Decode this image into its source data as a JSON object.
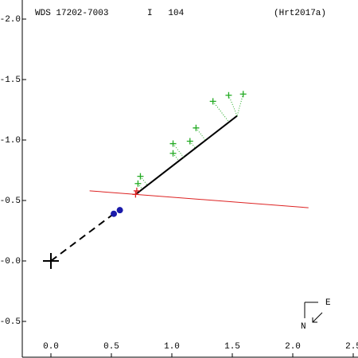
{
  "chart_data": {
    "type": "scatter",
    "header": {
      "id": "WDS 17202-7003",
      "grade": "I   104",
      "reference": "(Hrt2017a)"
    },
    "xlim": [
      -0.25,
      2.5
    ],
    "ylim": [
      -0.8,
      2.0
    ],
    "xticks": [
      {
        "value": 0,
        "label": "0.0"
      },
      {
        "value": 0.5,
        "label": "0.5"
      },
      {
        "value": 1,
        "label": "1.0"
      },
      {
        "value": 1.5,
        "label": "1.5"
      },
      {
        "value": 2,
        "label": "2.0"
      },
      {
        "value": 2.5,
        "label": "2.5"
      }
    ],
    "yticks": [
      {
        "value": 2,
        "label": "-2.0"
      },
      {
        "value": 1.5,
        "label": "-1.5"
      },
      {
        "value": 1,
        "label": "-1.0"
      },
      {
        "value": 0.5,
        "label": "-0.5"
      },
      {
        "value": 0,
        "label": "-0.0"
      },
      {
        "value": -0.5,
        "label": "-0.5"
      }
    ],
    "series": [
      {
        "marker": "plus",
        "color": "#22aa22",
        "x": [
          0.74,
          0.72,
          1.01,
          1.01,
          1.15,
          1.2,
          1.34,
          1.47,
          1.59
        ],
        "y": [
          0.7,
          0.64,
          0.97,
          0.89,
          0.99,
          1.1,
          1.32,
          1.37,
          1.38
        ]
      },
      {
        "marker": "plus",
        "color": "#dd2222",
        "x": [
          0.7,
          0.71
        ],
        "y": [
          0.55,
          0.58
        ]
      },
      {
        "marker": "dot",
        "color": "#1a1aaa",
        "x": [
          0.52,
          0.57
        ],
        "y": [
          0.39,
          0.42
        ]
      }
    ],
    "orbit": {
      "color": "#000000",
      "x": [
        0.7,
        1.54
      ],
      "y": [
        0.55,
        1.2
      ]
    },
    "projection": {
      "color": "#000000",
      "x": [
        0,
        0.52
      ],
      "y": [
        0,
        0.39
      ]
    },
    "reference_line": {
      "color": "#dd2222",
      "x": [
        0.32,
        2.13
      ],
      "y": [
        0.58,
        0.44
      ]
    },
    "compass": {
      "east": "E",
      "north": "N"
    }
  }
}
